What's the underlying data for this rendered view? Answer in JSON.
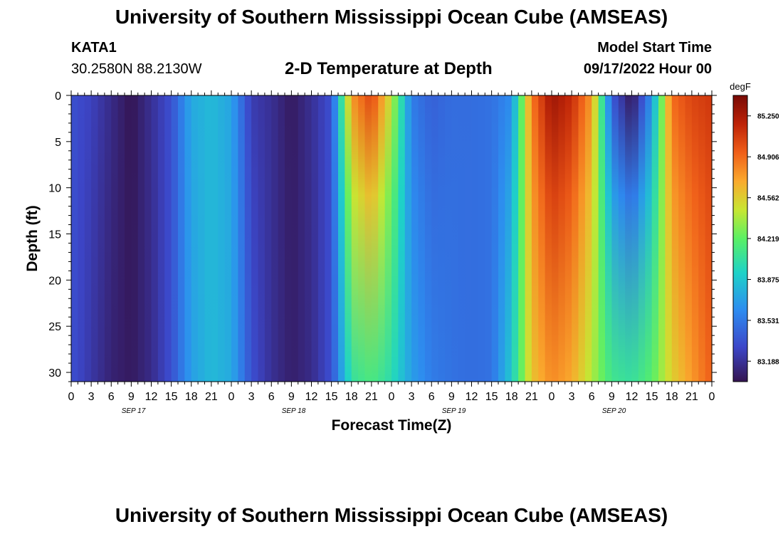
{
  "header": {
    "title": "University of Southern Mississippi Ocean Cube (AMSEAS)",
    "station": "KATA1",
    "coords": "30.2580N  88.2130W",
    "subtitle": "2-D Temperature at Depth",
    "model_label": "Model Start Time",
    "model_start": "09/17/2022 Hour 00"
  },
  "footer": {
    "title": "University of Southern Mississippi Ocean Cube (AMSEAS)"
  },
  "chart_data": {
    "type": "heatmap",
    "title": "2-D Temperature at Depth",
    "xlabel": "Forecast Time(Z)",
    "ylabel": "Depth (ft)",
    "x_hours": [
      0,
      96
    ],
    "y_range": [
      0,
      31
    ],
    "y_inverted": true,
    "x_tick_labels": [
      "0",
      "3",
      "6",
      "9",
      "12",
      "15",
      "18",
      "21",
      "0",
      "3",
      "6",
      "9",
      "12",
      "15",
      "18",
      "21",
      "0",
      "3",
      "6",
      "9",
      "12",
      "15",
      "18",
      "21",
      "0",
      "3",
      "6",
      "9",
      "12",
      "15",
      "18",
      "21",
      "0"
    ],
    "y_ticks": [
      0,
      5,
      10,
      15,
      20,
      25,
      30
    ],
    "day_labels": [
      {
        "label": "SEP 17",
        "hour": 12
      },
      {
        "label": "SEP 18",
        "hour": 36
      },
      {
        "label": "SEP 19",
        "hour": 60
      },
      {
        "label": "SEP 20",
        "hour": 84
      }
    ],
    "colorbar": {
      "unit": "degF",
      "min": 83.016,
      "max": 85.422,
      "ticks": [
        85.25,
        84.906,
        84.562,
        84.219,
        83.875,
        83.531,
        83.188
      ],
      "tick_labels": [
        "85.250",
        "84.906",
        "84.562",
        "84.219",
        "83.875",
        "83.531",
        "83.188"
      ]
    },
    "surface_temp_by_hour": [
      [
        0,
        83.35
      ],
      [
        3,
        83.28
      ],
      [
        6,
        83.15
      ],
      [
        9,
        83.02
      ],
      [
        12,
        83.18
      ],
      [
        15,
        83.35
      ],
      [
        18,
        83.75
      ],
      [
        21,
        83.82
      ],
      [
        24,
        83.72
      ],
      [
        27,
        83.25
      ],
      [
        30,
        83.18
      ],
      [
        33,
        83.05
      ],
      [
        36,
        83.18
      ],
      [
        39,
        83.35
      ],
      [
        42,
        84.75
      ],
      [
        45,
        85.05
      ],
      [
        48,
        84.45
      ],
      [
        51,
        83.55
      ],
      [
        54,
        83.42
      ],
      [
        57,
        83.48
      ],
      [
        60,
        83.48
      ],
      [
        63,
        83.5
      ],
      [
        66,
        83.62
      ],
      [
        69,
        84.85
      ],
      [
        72,
        85.3
      ],
      [
        75,
        85.15
      ],
      [
        78,
        84.75
      ],
      [
        81,
        83.4
      ],
      [
        84,
        83.02
      ],
      [
        87,
        83.65
      ],
      [
        90,
        84.9
      ],
      [
        93,
        85.05
      ],
      [
        96,
        85.1
      ]
    ],
    "bottom_temp_by_hour": [
      [
        0,
        83.35
      ],
      [
        3,
        83.22
      ],
      [
        6,
        83.1
      ],
      [
        9,
        83.05
      ],
      [
        12,
        83.15
      ],
      [
        15,
        83.35
      ],
      [
        18,
        83.7
      ],
      [
        21,
        83.82
      ],
      [
        24,
        83.75
      ],
      [
        27,
        83.35
      ],
      [
        30,
        83.18
      ],
      [
        33,
        83.08
      ],
      [
        36,
        83.15
      ],
      [
        39,
        83.35
      ],
      [
        42,
        84.05
      ],
      [
        45,
        84.15
      ],
      [
        48,
        84.0
      ],
      [
        51,
        83.7
      ],
      [
        54,
        83.55
      ],
      [
        57,
        83.5
      ],
      [
        60,
        83.48
      ],
      [
        63,
        83.5
      ],
      [
        66,
        83.9
      ],
      [
        69,
        84.6
      ],
      [
        72,
        84.8
      ],
      [
        75,
        84.7
      ],
      [
        78,
        84.4
      ],
      [
        81,
        84.1
      ],
      [
        84,
        84.05
      ],
      [
        87,
        84.2
      ],
      [
        90,
        84.55
      ],
      [
        93,
        84.75
      ],
      [
        96,
        84.95
      ]
    ]
  }
}
